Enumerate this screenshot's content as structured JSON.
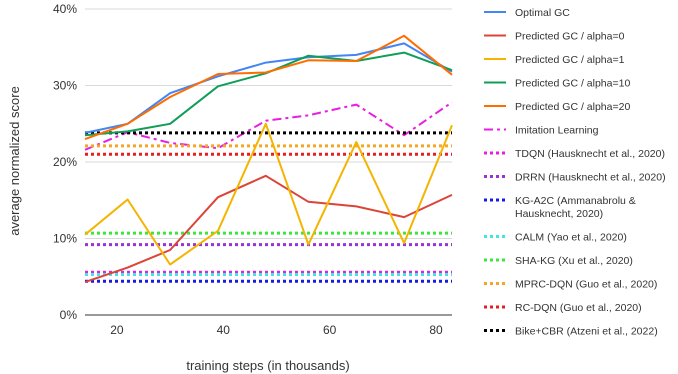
{
  "chart_data": {
    "type": "line",
    "xlabel": "training steps (in thousands)",
    "ylabel": "average normalized score",
    "xlim": [
      14,
      83
    ],
    "ylim": [
      0,
      40
    ],
    "x_ticks": [
      20,
      40,
      60,
      80
    ],
    "y_ticks": [
      0,
      10,
      20,
      30,
      40
    ],
    "x_tick_labels": [
      "20",
      "40",
      "60",
      "80"
    ],
    "y_tick_labels": [
      "0%",
      "10%",
      "20%",
      "30%",
      "40%"
    ],
    "grid": "horizontal",
    "legend_position": "right",
    "series": [
      {
        "name": "Optimal GC",
        "color": "#4285f4",
        "style": "solid",
        "x": [
          14,
          22,
          30,
          39,
          48,
          56,
          65,
          74,
          83
        ],
        "y": [
          23.8,
          25.0,
          29.0,
          31.2,
          33.0,
          33.7,
          34.0,
          35.5,
          31.8
        ]
      },
      {
        "name": "Predicted GC / alpha=0",
        "color": "#db4437",
        "style": "solid",
        "x": [
          14,
          22,
          30,
          39,
          48,
          56,
          65,
          74,
          83
        ],
        "y": [
          4.3,
          6.2,
          8.5,
          15.4,
          18.2,
          14.8,
          14.2,
          12.8,
          15.7
        ]
      },
      {
        "name": "Predicted GC / alpha=1",
        "color": "#f4b400",
        "style": "solid",
        "x": [
          14,
          22,
          30,
          39,
          48,
          56,
          65,
          74,
          83
        ],
        "y": [
          10.5,
          15.1,
          6.6,
          11.0,
          25.0,
          9.2,
          22.6,
          9.4,
          24.8
        ]
      },
      {
        "name": "Predicted GC / alpha=10",
        "color": "#0f9d58",
        "style": "solid",
        "x": [
          14,
          22,
          30,
          39,
          48,
          56,
          65,
          74,
          83
        ],
        "y": [
          23.5,
          24.0,
          25.0,
          29.9,
          31.6,
          33.9,
          33.2,
          34.3,
          32.0
        ]
      },
      {
        "name": "Predicted GC / alpha=20",
        "color": "#ff6d01",
        "style": "solid",
        "x": [
          14,
          22,
          30,
          39,
          48,
          56,
          65,
          74,
          83
        ],
        "y": [
          23.0,
          25.0,
          28.5,
          31.5,
          31.7,
          33.3,
          33.2,
          36.5,
          31.4
        ]
      },
      {
        "name": "Imitation Learning",
        "color": "#e81ee0",
        "style": "dashdot",
        "x": [
          14,
          22,
          30,
          39,
          48,
          56,
          65,
          74,
          83
        ],
        "y": [
          21.6,
          23.9,
          22.5,
          21.8,
          25.4,
          26.1,
          27.5,
          23.5,
          27.8
        ]
      },
      {
        "name": "TDQN (Hausknecht et al., 2020)",
        "color": "#e81ee0",
        "style": "dotted",
        "x": [
          14,
          83
        ],
        "y": [
          5.6,
          5.6
        ]
      },
      {
        "name": "DRRN (Hausknecht et al., 2020)",
        "color": "#9b30d9",
        "style": "dotted",
        "x": [
          14,
          83
        ],
        "y": [
          9.2,
          9.2
        ]
      },
      {
        "name": "KG-A2C (Ammanabrolu & Hausknecht, 2020)",
        "color": "#1a1ae6",
        "style": "dotted",
        "x": [
          14,
          83
        ],
        "y": [
          4.4,
          4.4
        ]
      },
      {
        "name": "CALM (Yao et al., 2020)",
        "color": "#3ee6e6",
        "style": "dotted",
        "x": [
          14,
          83
        ],
        "y": [
          5.3,
          5.3
        ]
      },
      {
        "name": "SHA-KG (Xu et al., 2020)",
        "color": "#3ce63c",
        "style": "dotted",
        "x": [
          14,
          83
        ],
        "y": [
          10.7,
          10.7
        ]
      },
      {
        "name": "MPRC-DQN (Guo et al., 2020)",
        "color": "#f5a623",
        "style": "dotted",
        "x": [
          14,
          83
        ],
        "y": [
          22.1,
          22.1
        ]
      },
      {
        "name": "RC-DQN (Guo et al., 2020)",
        "color": "#e61e1e",
        "style": "dotted",
        "x": [
          14,
          83
        ],
        "y": [
          21.0,
          21.0
        ]
      },
      {
        "name": "Bike+CBR (Atzeni et al., 2022)",
        "color": "#000000",
        "style": "dotted",
        "x": [
          14,
          83
        ],
        "y": [
          23.8,
          23.8
        ]
      }
    ]
  },
  "legend": {
    "items": [
      {
        "lines": [
          "Optimal GC"
        ]
      },
      {
        "lines": [
          "Predicted GC / alpha=0"
        ]
      },
      {
        "lines": [
          "Predicted GC / alpha=1"
        ]
      },
      {
        "lines": [
          "Predicted GC / alpha=10"
        ]
      },
      {
        "lines": [
          "Predicted GC / alpha=20"
        ]
      },
      {
        "lines": [
          "Imitation Learning"
        ]
      },
      {
        "lines": [
          "TDQN (Hausknecht et al., 2020)"
        ]
      },
      {
        "lines": [
          "DRRN (Hausknecht et al., 2020)"
        ]
      },
      {
        "lines": [
          "KG-A2C (Ammanabrolu &",
          "Hausknecht, 2020)"
        ]
      },
      {
        "lines": [
          "CALM (Yao et al., 2020)"
        ]
      },
      {
        "lines": [
          "SHA-KG (Xu et al., 2020)"
        ]
      },
      {
        "lines": [
          "MPRC-DQN (Guo et al., 2020)"
        ]
      },
      {
        "lines": [
          "RC-DQN (Guo et al., 2020)"
        ]
      },
      {
        "lines": [
          "Bike+CBR (Atzeni et al., 2022)"
        ]
      }
    ]
  },
  "colors": {
    "grid": "#d9d9d9",
    "axis": "#333333",
    "text": "#333333"
  }
}
